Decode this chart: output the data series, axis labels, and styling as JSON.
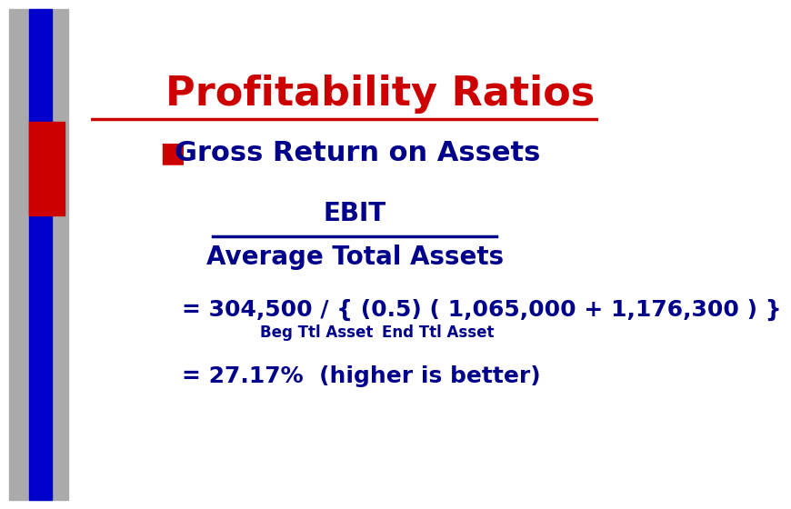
{
  "title": "Profitability Ratios",
  "title_color": "#CC0000",
  "title_fontsize": 32,
  "title_bold": true,
  "bg_color": "#FFFFFF",
  "red_line_color": "#CC0000",
  "bullet_color": "#CC0000",
  "bullet_fontsize": 22,
  "text_color": "#00008B",
  "formula_numerator": "EBIT",
  "formula_denominator": "Average Total Assets",
  "formula_fontsize": 20,
  "line_color": "#00008B",
  "equation_line1": "= 304,500 / { (0.5) ( 1,065,000 + 1,176,300 ) }",
  "equation_line1_fontsize": 18,
  "label_beg": "Beg Ttl Asset",
  "label_end": "End Ttl Asset",
  "label_fontsize": 12,
  "equation_line2": "= 27.17%  (higher is better)",
  "equation_line2_fontsize": 18,
  "sidebar_gray_color": "#AAAAAA",
  "sidebar_blue_color": "#0000CC",
  "sidebar_red_color": "#CC0000"
}
